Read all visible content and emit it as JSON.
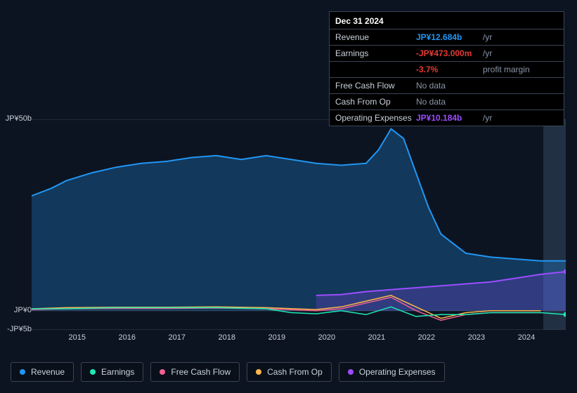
{
  "tooltip": {
    "date": "Dec 31 2024",
    "rows": [
      {
        "label": "Revenue",
        "value": "JP¥12.684b",
        "suffix": "/yr",
        "color": "#2196f3"
      },
      {
        "label": "Earnings",
        "value": "-JP¥473.000m",
        "suffix": "/yr",
        "color": "#e53935"
      },
      {
        "label": "",
        "value": "-3.7%",
        "suffix": "profit margin",
        "color": "#e53935"
      },
      {
        "label": "Free Cash Flow",
        "value": "No data",
        "suffix": "",
        "color": "#8a96a8"
      },
      {
        "label": "Cash From Op",
        "value": "No data",
        "suffix": "",
        "color": "#8a96a8"
      },
      {
        "label": "Operating Expenses",
        "value": "JP¥10.184b",
        "suffix": "/yr",
        "color": "#9c4dff"
      }
    ]
  },
  "chart": {
    "type": "area-line",
    "background": "#0d1421",
    "grid_color": "#3a4556",
    "axis_font_size": 11,
    "xlim": [
      2014.3,
      2025.0
    ],
    "ylim": [
      -5,
      50
    ],
    "y_ticks": [
      50,
      0,
      -5
    ],
    "y_labels": [
      "JP¥50b",
      "JP¥0",
      "-JP¥5b"
    ],
    "x_ticks": [
      2015,
      2016,
      2017,
      2018,
      2019,
      2020,
      2021,
      2022,
      2023,
      2024
    ],
    "forecast_start_x": 2024.55,
    "forecast_fill": "#223044",
    "series": {
      "revenue": {
        "color": "#2196f3",
        "line_width": 2,
        "fill_opacity": 0.28,
        "x": [
          2014.3,
          2014.7,
          2015,
          2015.5,
          2016,
          2016.5,
          2017,
          2017.5,
          2018,
          2018.5,
          2019,
          2019.5,
          2020,
          2020.5,
          2021,
          2021.25,
          2021.5,
          2021.75,
          2022,
          2022.25,
          2022.5,
          2023,
          2023.5,
          2024,
          2024.5,
          2025
        ],
        "y": [
          30,
          32,
          34,
          36,
          37.5,
          38.5,
          39,
          40,
          40.5,
          39.5,
          40.5,
          39.5,
          38.5,
          38,
          38.5,
          42,
          47.5,
          45,
          36,
          27,
          20,
          15,
          14,
          13.5,
          13,
          13
        ]
      },
      "earnings": {
        "color": "#1de9b6",
        "line_width": 1.5,
        "fill_opacity": 0,
        "x": [
          2014.3,
          2015,
          2016,
          2017,
          2018,
          2019,
          2019.5,
          2020,
          2020.5,
          2021,
          2021.5,
          2022,
          2022.5,
          2023,
          2023.5,
          2024,
          2024.5,
          2025
        ],
        "y": [
          0.5,
          0.5,
          0.8,
          0.8,
          0.8,
          0.5,
          -0.5,
          -0.8,
          0,
          -1,
          1,
          -1.5,
          -1,
          -1,
          -0.5,
          -0.5,
          -0.5,
          -1
        ]
      },
      "fcf": {
        "color": "#f06292",
        "line_width": 1.5,
        "fill_opacity": 0,
        "x": [
          2014.3,
          2015,
          2016,
          2017,
          2018,
          2019,
          2020,
          2020.5,
          2021,
          2021.5,
          2022,
          2022.5,
          2023,
          2023.5,
          2024,
          2024.5
        ],
        "y": [
          0.3,
          0.5,
          0.6,
          0.6,
          0.7,
          0.5,
          0,
          0.5,
          2,
          3.5,
          0,
          -2.5,
          -1,
          -0.5,
          -0.5,
          -0.5
        ]
      },
      "cfo": {
        "color": "#ffb74d",
        "line_width": 1.5,
        "fill_opacity": 0,
        "x": [
          2014.3,
          2015,
          2016,
          2017,
          2018,
          2019,
          2020,
          2020.5,
          2021,
          2021.5,
          2022,
          2022.5,
          2023,
          2023.5,
          2024,
          2024.5
        ],
        "y": [
          0.5,
          0.8,
          0.9,
          0.9,
          1,
          0.8,
          0.3,
          1,
          2.5,
          4,
          1,
          -2,
          -0.5,
          0,
          0,
          0
        ]
      },
      "opex": {
        "color": "#9c4dff",
        "line_width": 2,
        "fill_opacity": 0.22,
        "x": [
          2020,
          2020.5,
          2021,
          2021.5,
          2022,
          2022.5,
          2023,
          2023.5,
          2024,
          2024.5,
          2025
        ],
        "y": [
          4,
          4.2,
          5,
          5.5,
          6,
          6.5,
          7,
          7.5,
          8.5,
          9.5,
          10.2
        ]
      }
    }
  },
  "legend": [
    {
      "id": "revenue",
      "label": "Revenue",
      "color": "#2196f3"
    },
    {
      "id": "earnings",
      "label": "Earnings",
      "color": "#1de9b6"
    },
    {
      "id": "fcf",
      "label": "Free Cash Flow",
      "color": "#f06292"
    },
    {
      "id": "cfo",
      "label": "Cash From Op",
      "color": "#ffb74d"
    },
    {
      "id": "opex",
      "label": "Operating Expenses",
      "color": "#9c4dff"
    }
  ]
}
